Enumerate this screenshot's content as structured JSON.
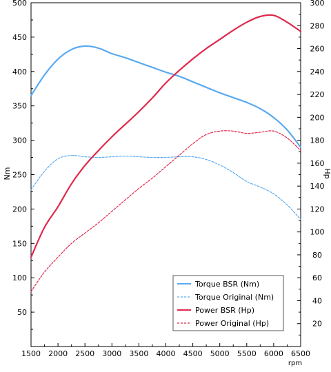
{
  "chart_data": {
    "type": "line",
    "title": "",
    "xlabel": "rpm",
    "ylabel_left": "Nm",
    "ylabel_right": "Hp",
    "xlim": [
      1500,
      6500
    ],
    "ylim_left": [
      0,
      500
    ],
    "ylim_right": [
      0,
      300
    ],
    "x_ticks": [
      1500,
      2000,
      2500,
      3000,
      3500,
      4000,
      4500,
      5000,
      5500,
      6000,
      6500
    ],
    "y_ticks_left": [
      50,
      100,
      150,
      200,
      250,
      300,
      350,
      400,
      450,
      500
    ],
    "y_ticks_right": [
      20,
      40,
      60,
      80,
      100,
      120,
      140,
      160,
      180,
      200,
      220,
      240,
      260,
      280,
      300
    ],
    "grid": false,
    "legend_position": "bottom-right",
    "series": [
      {
        "name": "Torque BSR (Nm)",
        "axis": "left",
        "color": "#5aaaf0",
        "style": "solid",
        "x": [
          1500,
          1750,
          2000,
          2250,
          2500,
          2750,
          3000,
          3250,
          3500,
          3750,
          4000,
          4250,
          4500,
          4750,
          5000,
          5250,
          5500,
          5750,
          6000,
          6250,
          6500
        ],
        "y": [
          365,
          395,
          418,
          432,
          437,
          434,
          426,
          420,
          413,
          406,
          399,
          393,
          385,
          377,
          369,
          362,
          355,
          346,
          333,
          315,
          290
        ]
      },
      {
        "name": "Torque Original (Nm)",
        "axis": "left",
        "color": "#5aaaf0",
        "style": "dashed",
        "x": [
          1500,
          1750,
          2000,
          2250,
          2500,
          2750,
          3000,
          3250,
          3500,
          3750,
          4000,
          4250,
          4500,
          4750,
          5000,
          5250,
          5500,
          5750,
          6000,
          6250,
          6500
        ],
        "y": [
          228,
          255,
          273,
          278,
          276,
          275,
          276,
          277,
          276,
          275,
          275,
          276,
          276,
          272,
          264,
          253,
          240,
          232,
          222,
          206,
          185
        ]
      },
      {
        "name": "Power BSR (Hp)",
        "axis": "right",
        "color": "#e0284b",
        "style": "solid",
        "x": [
          1500,
          1750,
          2000,
          2250,
          2500,
          2750,
          3000,
          3250,
          3500,
          3750,
          4000,
          4250,
          4500,
          4750,
          5000,
          5250,
          5500,
          5750,
          6000,
          6250,
          6500
        ],
        "y": [
          78,
          104,
          122,
          142,
          158,
          171,
          183,
          194,
          205,
          217,
          230,
          241,
          251,
          260,
          268,
          276,
          283,
          288,
          289,
          283,
          275
        ]
      },
      {
        "name": "Power Original (Hp)",
        "axis": "right",
        "color": "#e0284b",
        "style": "dashed",
        "x": [
          1500,
          1750,
          2000,
          2250,
          2500,
          2750,
          3000,
          3250,
          3500,
          3750,
          4000,
          4250,
          4500,
          4750,
          5000,
          5250,
          5500,
          5750,
          6000,
          6250,
          6500
        ],
        "y": [
          48,
          65,
          78,
          90,
          99,
          108,
          118,
          128,
          138,
          147,
          157,
          167,
          177,
          185,
          188,
          188,
          186,
          187,
          188,
          182,
          171
        ]
      }
    ]
  }
}
